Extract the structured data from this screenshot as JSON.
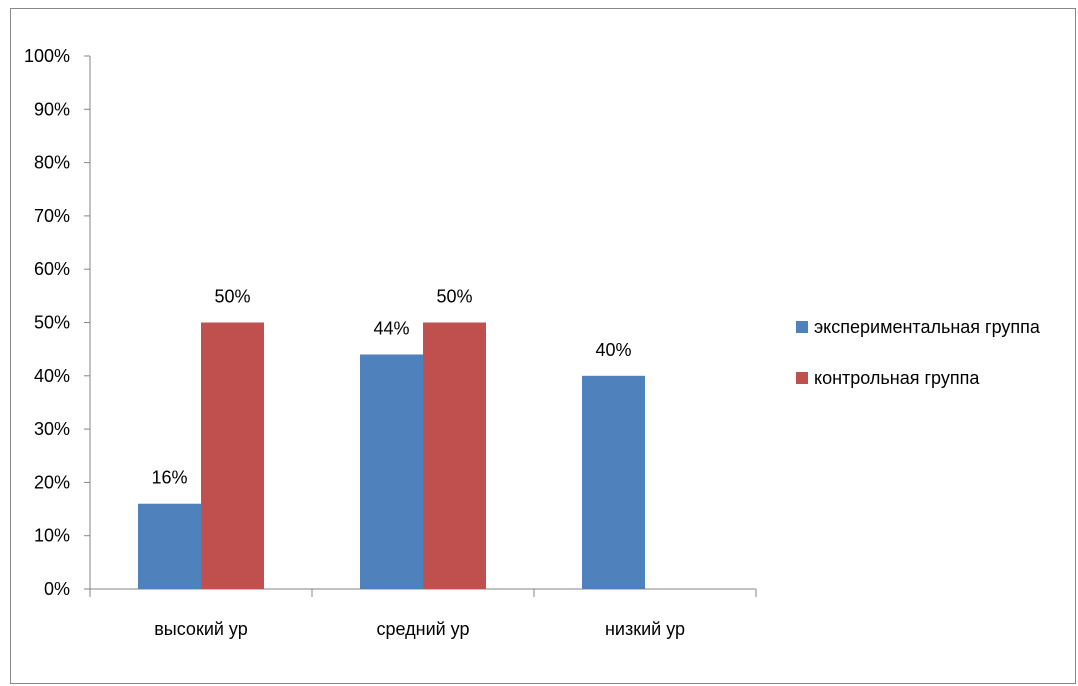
{
  "chart_data": {
    "type": "bar",
    "categories": [
      "высокий ур",
      "средний ур",
      "низкий ур"
    ],
    "series": [
      {
        "name": "экспериментальная группа",
        "values": [
          16,
          44,
          40
        ],
        "color": "#4F81BD",
        "labels": [
          "16%",
          "44%",
          "40%"
        ]
      },
      {
        "name": "контрольная группа",
        "values": [
          50,
          50,
          0
        ],
        "color": "#C0504D",
        "labels": [
          "50%",
          "50%",
          ""
        ]
      }
    ],
    "ylim": [
      0,
      100
    ],
    "yticks": [
      "0%",
      "10%",
      "20%",
      "30%",
      "40%",
      "50%",
      "60%",
      "70%",
      "80%",
      "90%",
      "100%"
    ],
    "grid": false,
    "legend_position": "right"
  }
}
